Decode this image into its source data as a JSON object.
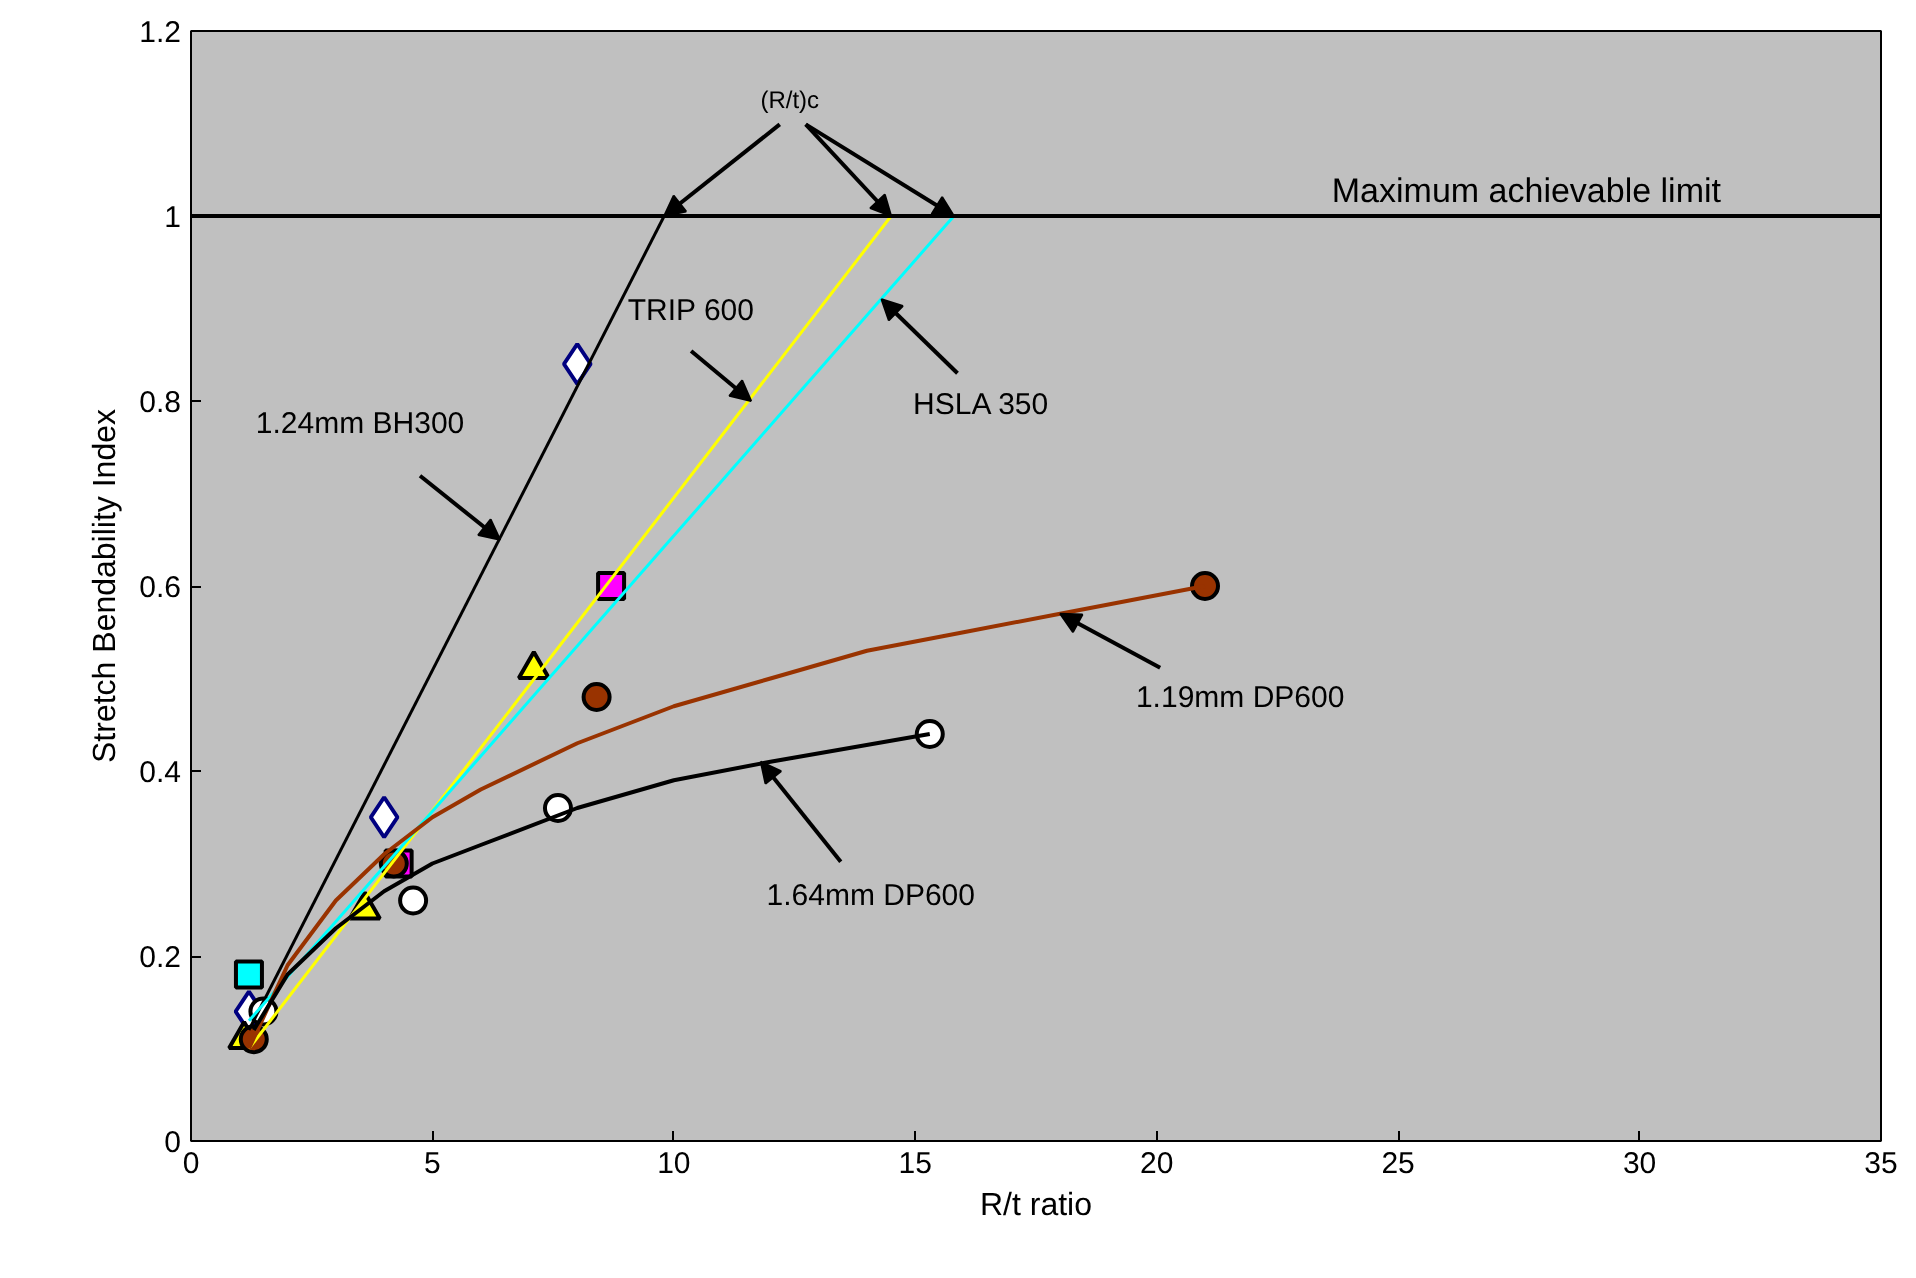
{
  "chart_data": {
    "type": "line",
    "xlabel": "R/t ratio",
    "ylabel": "Stretch Bendability Index",
    "xlim": [
      0,
      35
    ],
    "ylim": [
      0,
      1.2
    ],
    "xticks": [
      0,
      5,
      10,
      15,
      20,
      25,
      30,
      35
    ],
    "yticks": [
      0,
      0.2,
      0.4,
      0.6,
      0.8,
      1,
      1.2
    ],
    "series": [
      {
        "color": "#000000",
        "x": [
          1.2,
          9.8
        ],
        "values": [
          0.12,
          1.0
        ]
      },
      {
        "color": "#ffff00",
        "x": [
          1.2,
          14.5
        ],
        "values": [
          0.1,
          1.0
        ]
      },
      {
        "color": "#00ffff",
        "x": [
          1.2,
          15.8
        ],
        "values": [
          0.13,
          1.0
        ]
      },
      {
        "color": "#993300",
        "x": [
          1.2,
          2,
          3,
          4,
          5,
          6,
          8,
          10,
          12,
          14,
          16,
          18,
          21
        ],
        "values": [
          0.1,
          0.19,
          0.26,
          0.31,
          0.35,
          0.38,
          0.43,
          0.47,
          0.5,
          0.53,
          0.55,
          0.57,
          0.6
        ]
      },
      {
        "color": "#000000",
        "x": [
          1.3,
          2,
          3,
          4,
          5,
          6,
          8,
          10,
          12,
          15.3
        ],
        "values": [
          0.12,
          0.18,
          0.23,
          0.27,
          0.3,
          0.32,
          0.36,
          0.39,
          0.41,
          0.44
        ]
      },
      {
        "type": "scatter",
        "marker": "diamond",
        "color": "#ffffff",
        "x": [
          1.2,
          4,
          8
        ],
        "values": [
          0.14,
          0.35,
          0.84
        ]
      },
      {
        "type": "scatter",
        "marker": "square",
        "colors": [
          "#00ffff",
          "#ff00ff",
          "#ff00ff"
        ],
        "x": [
          1.2,
          4.3,
          8.7
        ],
        "values": [
          0.18,
          0.3,
          0.6
        ]
      },
      {
        "type": "scatter",
        "marker": "triangle",
        "color": "#ffff00",
        "x": [
          1.1,
          3.6,
          7.1
        ],
        "values": [
          0.11,
          0.25,
          0.51
        ]
      },
      {
        "type": "scatter",
        "marker": "circle",
        "color": "#993300",
        "x": [
          1.3,
          4.2,
          8.4,
          21
        ],
        "values": [
          0.11,
          0.3,
          0.48,
          0.6
        ]
      },
      {
        "type": "scatter",
        "marker": "circle",
        "color": "#ffffff",
        "x": [
          1.5,
          4.6,
          7.6,
          15.3
        ],
        "values": [
          0.14,
          0.26,
          0.36,
          0.44
        ]
      }
    ],
    "ref_lines": [
      {
        "axis": "y",
        "value": 1,
        "label": "Maximum achievable limit",
        "color": "#000000"
      }
    ],
    "annotations": [
      {
        "text": "1.24mm BH300",
        "x": 6.4,
        "y": 0.65
      },
      {
        "text": "TRIP 600",
        "x": 11.6,
        "y": 0.8
      },
      {
        "text": "HSLA 350",
        "x": 14.3,
        "y": 0.91
      },
      {
        "text": "1.19mm DP600",
        "x": 18,
        "y": 0.57
      },
      {
        "text": "1.64mm DP600",
        "x": 11.8,
        "y": 0.41
      },
      {
        "text": "(R/t)c",
        "x": 9.8,
        "y": 1
      }
    ]
  }
}
